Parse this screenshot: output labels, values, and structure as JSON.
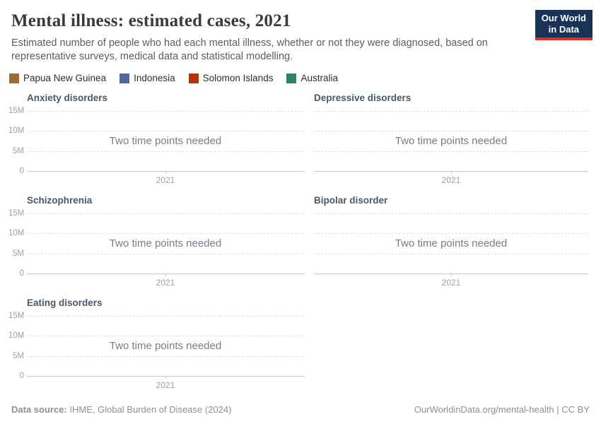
{
  "header": {
    "title": "Mental illness: estimated cases, 2021",
    "subtitle": "Estimated number of people who had each mental illness, whether or not they were diagnosed, based on representative surveys, medical data and statistical modelling.",
    "logo_line1": "Our World",
    "logo_line2": "in Data",
    "logo_bg": "#183357",
    "logo_accent": "#dc2e22"
  },
  "legend": {
    "items": [
      {
        "label": "Papua New Guinea",
        "color": "#996D39"
      },
      {
        "label": "Indonesia",
        "color": "#4C6A9C"
      },
      {
        "label": "Solomon Islands",
        "color": "#B13507"
      },
      {
        "label": "Australia",
        "color": "#2C8465"
      }
    ]
  },
  "yaxis": {
    "ticks": [
      "15M",
      "10M",
      "5M",
      "0"
    ]
  },
  "panels": [
    {
      "title": "Anxiety disorders",
      "message": "Two time points needed",
      "x_tick": "2021"
    },
    {
      "title": "Depressive disorders",
      "message": "Two time points needed",
      "x_tick": "2021"
    },
    {
      "title": "Schizophrenia",
      "message": "Two time points needed",
      "x_tick": "2021"
    },
    {
      "title": "Bipolar disorder",
      "message": "Two time points needed",
      "x_tick": "2021"
    },
    {
      "title": "Eating disorders",
      "message": "Two time points needed",
      "x_tick": "2021"
    }
  ],
  "chart_data": {
    "type": "line",
    "faceted_by": "mental illness",
    "facets": [
      "Anxiety disorders",
      "Depressive disorders",
      "Schizophrenia",
      "Bipolar disorder",
      "Eating disorders"
    ],
    "entities": [
      "Papua New Guinea",
      "Indonesia",
      "Solomon Islands",
      "Australia"
    ],
    "x": [
      2021
    ],
    "series": [],
    "values_plotted": "none — each facet shows placeholder message 'Two time points needed' because only one year (2021) is selected",
    "title": "Mental illness: estimated cases, 2021",
    "xlabel": "",
    "ylabel": "",
    "ylim": [
      0,
      15000000
    ],
    "yticks_labels": [
      "0",
      "5M",
      "10M",
      "15M"
    ],
    "xticks_labels": [
      "2021"
    ],
    "grid": "horizontal dashed gridlines",
    "legend_position": "top"
  },
  "footer": {
    "source_prefix": "Data source:",
    "source": " IHME, Global Burden of Disease (2024)",
    "credit": "OurWorldinData.org/mental-health | CC BY"
  }
}
